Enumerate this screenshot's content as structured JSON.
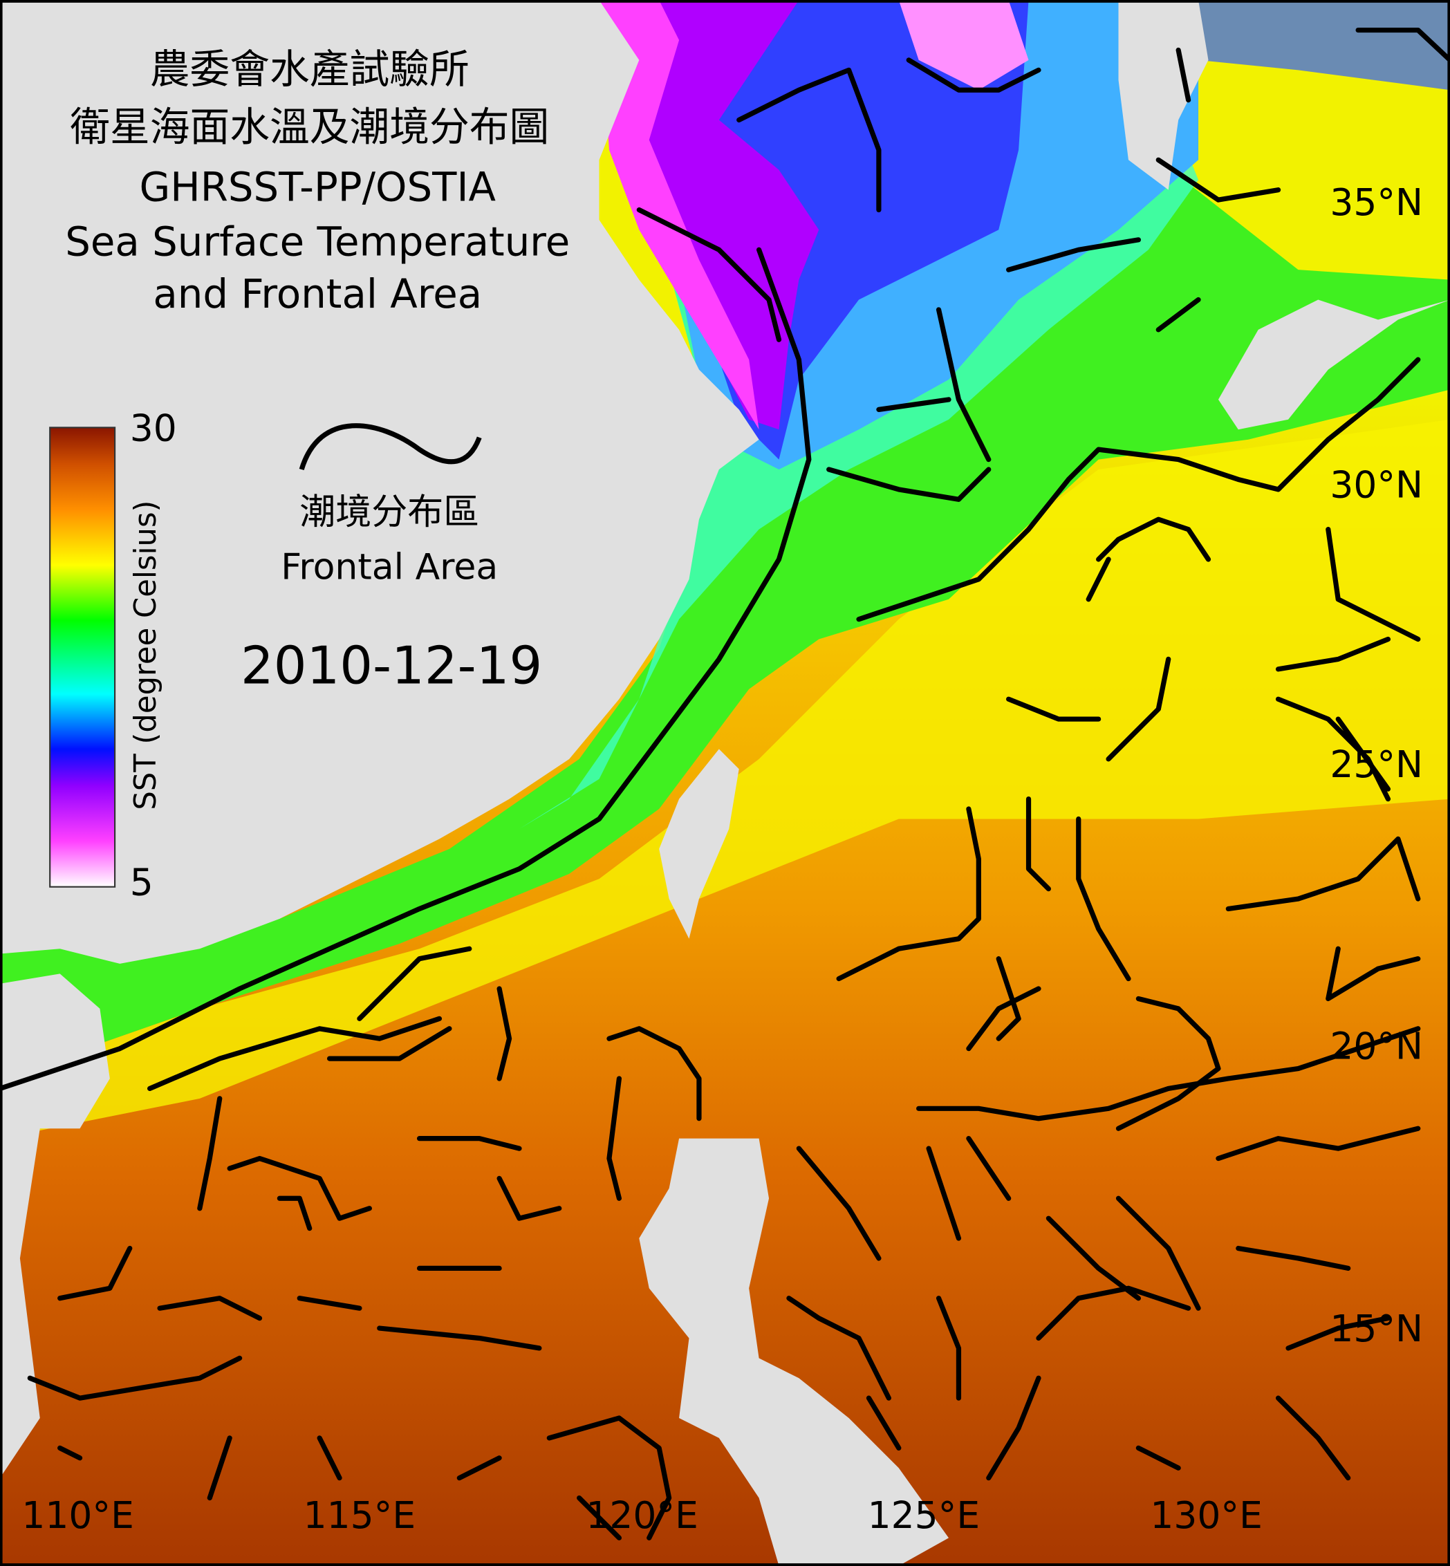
{
  "header": {
    "title_lines": [
      "農委會水產試驗所",
      "衛星海面水溫及潮境分布圖",
      "GHRSST-PP/OSTIA",
      "Sea Surface Temperature",
      "and Frontal Area"
    ]
  },
  "colorbar": {
    "label": "SST (degree Celsius)",
    "max": 30,
    "min": 5
  },
  "legend": {
    "label_zh": "潮境分布區",
    "label_en": "Frontal Area"
  },
  "date": "2010-12-19",
  "latitude_labels": [
    "35°N",
    "30°N",
    "25°N",
    "20°N",
    "15°N"
  ],
  "longitude_labels": [
    "110°E",
    "115°E",
    "120°E",
    "125°E",
    "130°E"
  ]
}
